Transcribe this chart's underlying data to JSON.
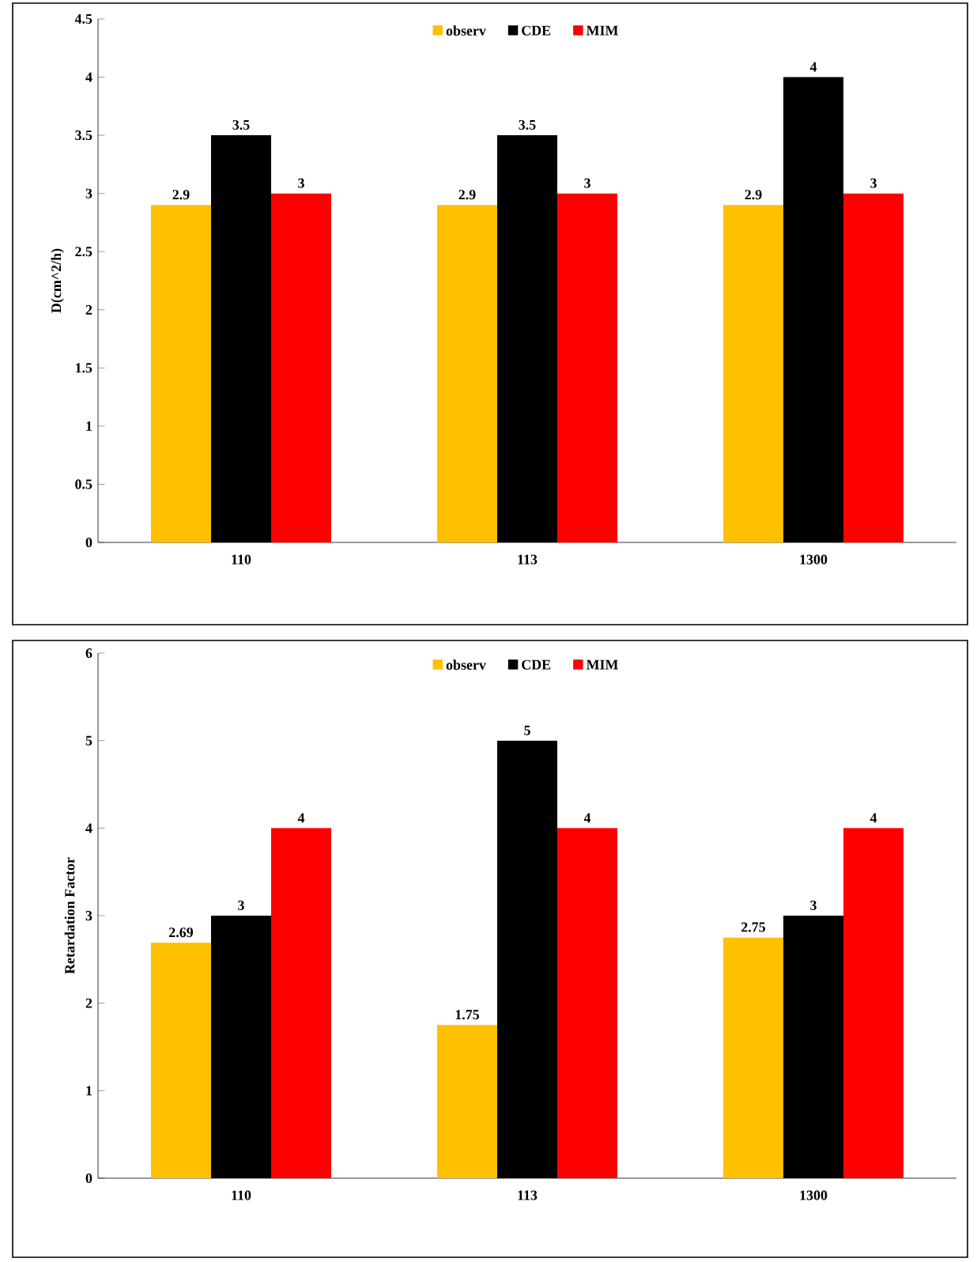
{
  "chart_data": [
    {
      "type": "bar",
      "ylabel": "D(cm^2/h)",
      "categories": [
        "110",
        "113",
        "1300"
      ],
      "series": [
        {
          "name": "observ",
          "color": "#ffc000",
          "values": [
            2.9,
            2.9,
            2.9
          ]
        },
        {
          "name": "CDE",
          "color": "#000000",
          "values": [
            3.5,
            3.5,
            4
          ]
        },
        {
          "name": "MIM",
          "color": "#ff0000",
          "values": [
            3,
            3,
            3
          ]
        }
      ],
      "ylim": [
        0,
        4.5
      ],
      "yticks": [
        0,
        0.5,
        1,
        1.5,
        2,
        2.5,
        3,
        3.5,
        4,
        4.5
      ],
      "data_labels": true,
      "legend": "top"
    },
    {
      "type": "bar",
      "ylabel": "Retardation Factor",
      "categories": [
        "110",
        "113",
        "1300"
      ],
      "series": [
        {
          "name": "observ",
          "color": "#ffc000",
          "values": [
            2.69,
            1.75,
            2.75
          ]
        },
        {
          "name": "CDE",
          "color": "#000000",
          "values": [
            3,
            5,
            3
          ]
        },
        {
          "name": "MIM",
          "color": "#ff0000",
          "values": [
            4,
            4,
            4
          ]
        }
      ],
      "ylim": [
        0,
        6
      ],
      "yticks": [
        0,
        1,
        2,
        3,
        4,
        5,
        6
      ],
      "data_labels": true,
      "legend": "top"
    }
  ]
}
